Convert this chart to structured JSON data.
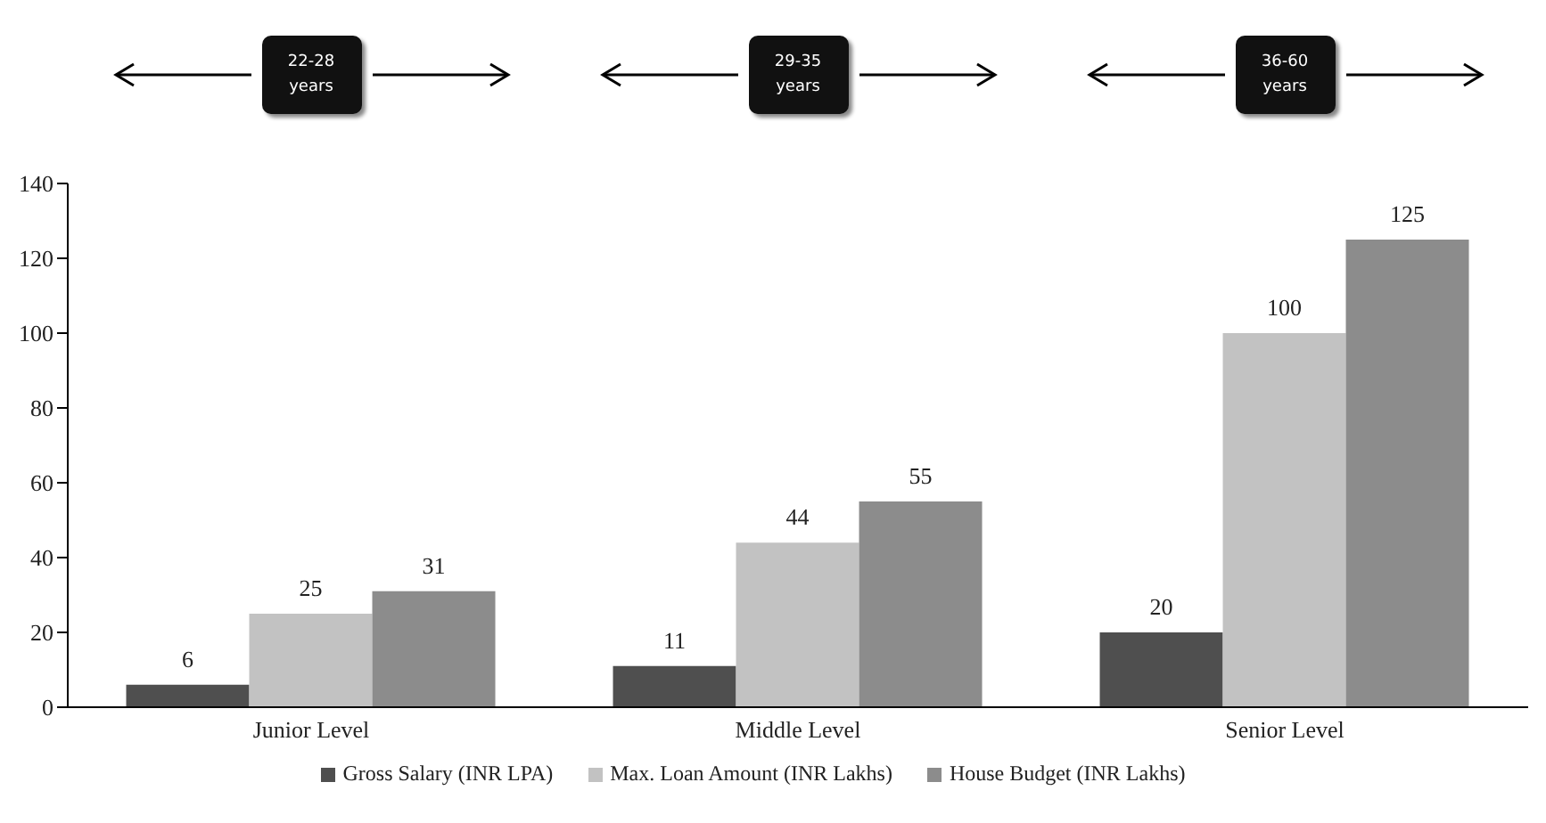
{
  "chart_data": {
    "type": "bar",
    "categories": [
      "Junior Level",
      "Middle Level",
      "Senior Level"
    ],
    "series": [
      {
        "name": "Gross Salary (INR LPA)",
        "color": "#4f4f4f",
        "values": [
          6,
          11,
          20
        ]
      },
      {
        "name": "Max. Loan Amount (INR Lakhs)",
        "color": "#c2c2c2",
        "values": [
          25,
          44,
          100
        ]
      },
      {
        "name": "House Budget (INR Lakhs)",
        "color": "#8c8c8c",
        "values": [
          31,
          55,
          125
        ]
      }
    ],
    "ylim": [
      0,
      140
    ],
    "yticks": [
      0,
      20,
      40,
      60,
      80,
      100,
      120,
      140
    ],
    "grid": false,
    "legend": "bottom",
    "data_labels": true,
    "annotations": [
      "22-28 years",
      "29-35 years",
      "36-60 years"
    ]
  }
}
